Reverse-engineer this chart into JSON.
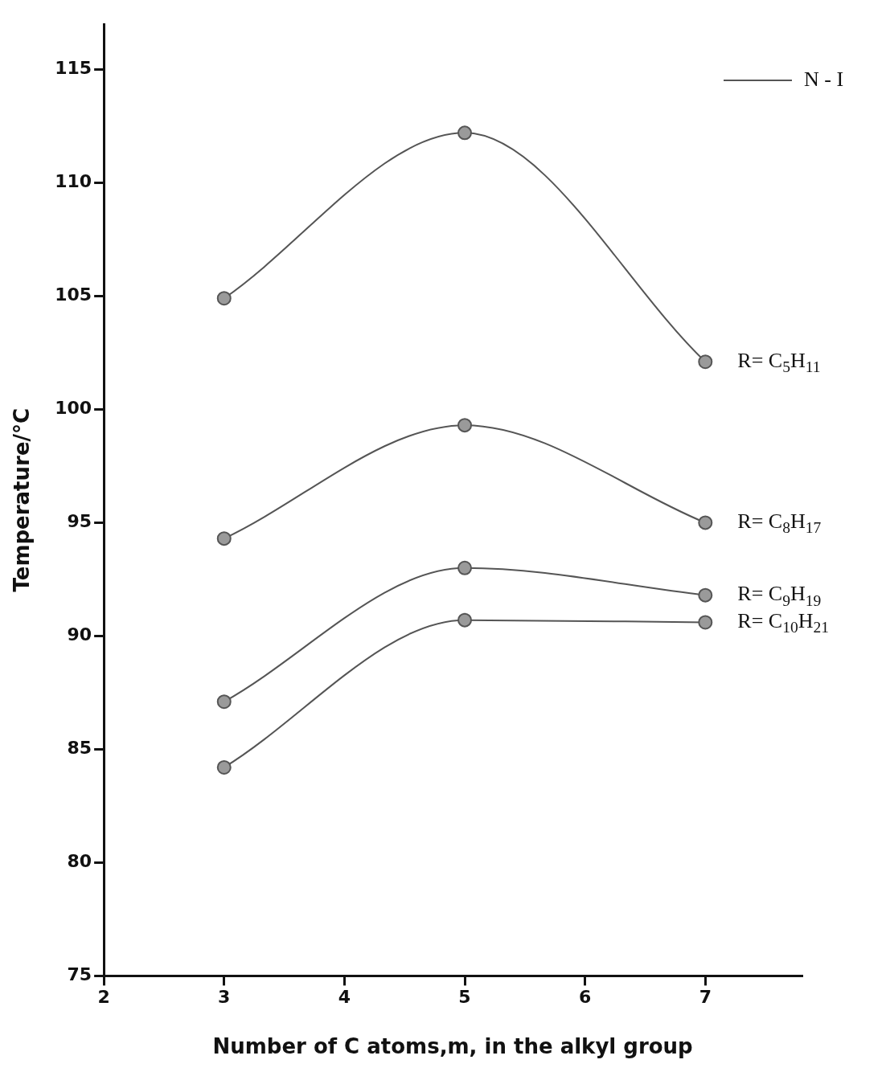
{
  "chart_data": {
    "type": "line",
    "xlabel": "Number of C atoms,m, in the alkyl group",
    "ylabel": "Temperature/°C",
    "legend_title": "N - I",
    "legend": "top right",
    "marker": "circle",
    "line_style": "solid",
    "grid": false,
    "x": [
      3,
      5,
      7
    ],
    "xlim": [
      2,
      7.8
    ],
    "xticks": [
      2,
      3,
      4,
      5,
      6,
      7
    ],
    "ylim": [
      75,
      117
    ],
    "yticks": [
      75,
      80,
      85,
      90,
      95,
      100,
      105,
      110,
      115
    ],
    "series": [
      {
        "name": "R= C$_{5}$H$_{11}$",
        "color": "#555555",
        "values": [
          104.9,
          112.2,
          102.1
        ]
      },
      {
        "name": "R= C$_{8}$H$_{17}$",
        "color": "#555555",
        "values": [
          94.3,
          99.3,
          95.0
        ]
      },
      {
        "name": "R= C$_{9}$H$_{19}$",
        "color": "#555555",
        "values": [
          87.1,
          93.0,
          91.8
        ]
      },
      {
        "name": "R= C$_{10}$H$_{21}$",
        "color": "#555555",
        "values": [
          84.2,
          90.7,
          90.6
        ]
      }
    ]
  }
}
